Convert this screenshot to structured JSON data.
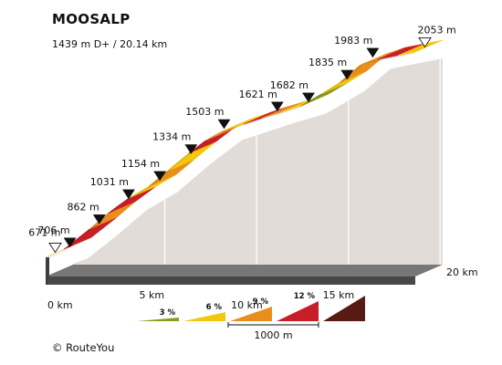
{
  "chart_data": {
    "type": "area",
    "title": "MOOSALP",
    "subtitle": "1439 m D+ / 20.14 km",
    "x_unit": "km",
    "x_ticks": [
      {
        "km": 0,
        "label": "0 km"
      },
      {
        "km": 5,
        "label": "5 km"
      },
      {
        "km": 10,
        "label": "10 km"
      },
      {
        "km": 15,
        "label": "15 km"
      },
      {
        "km": 20,
        "label": "20 km"
      }
    ],
    "total_km": 20.14,
    "xlim": [
      0,
      20.14
    ],
    "ylim": [
      671,
      2053
    ],
    "points": [
      {
        "km": 0,
        "elev": 671,
        "label": "671 m",
        "marker": "open"
      },
      {
        "km": 0.8,
        "elev": 706,
        "label": "706 m",
        "marker": "filled"
      },
      {
        "km": 2.4,
        "elev": 862,
        "label": "862 m",
        "marker": "filled"
      },
      {
        "km": 4.0,
        "elev": 1031,
        "label": "1031 m",
        "marker": "filled"
      },
      {
        "km": 5.7,
        "elev": 1154,
        "label": "1154 m",
        "marker": "filled"
      },
      {
        "km": 7.4,
        "elev": 1334,
        "label": "1334 m",
        "marker": "filled"
      },
      {
        "km": 9.2,
        "elev": 1503,
        "label": "1503 m",
        "marker": "filled"
      },
      {
        "km": 12.1,
        "elev": 1621,
        "label": "1621 m",
        "marker": "filled"
      },
      {
        "km": 13.8,
        "elev": 1682,
        "label": "1682 m",
        "marker": "filled"
      },
      {
        "km": 15.9,
        "elev": 1835,
        "label": "1835 m",
        "marker": "filled"
      },
      {
        "km": 17.3,
        "elev": 1983,
        "label": "1983 m",
        "marker": "filled"
      },
      {
        "km": 20.14,
        "elev": 2053,
        "label": "2053 m",
        "marker": "open"
      }
    ],
    "segments": [
      {
        "from": 0.0,
        "to": 1.0,
        "class": "6"
      },
      {
        "from": 1.0,
        "to": 2.4,
        "class": "12"
      },
      {
        "from": 2.4,
        "to": 3.4,
        "class": "9"
      },
      {
        "from": 3.4,
        "to": 4.5,
        "class": "12"
      },
      {
        "from": 4.5,
        "to": 5.6,
        "class": "6"
      },
      {
        "from": 5.6,
        "to": 6.6,
        "class": "9"
      },
      {
        "from": 6.6,
        "to": 7.8,
        "class": "6"
      },
      {
        "from": 7.8,
        "to": 8.7,
        "class": "12"
      },
      {
        "from": 8.7,
        "to": 9.7,
        "class": "9"
      },
      {
        "from": 9.7,
        "to": 10.8,
        "class": "6"
      },
      {
        "from": 10.8,
        "to": 11.8,
        "class": "12"
      },
      {
        "from": 11.8,
        "to": 12.8,
        "class": "9"
      },
      {
        "from": 12.8,
        "to": 13.9,
        "class": "6"
      },
      {
        "from": 13.9,
        "to": 15.0,
        "class": "3"
      },
      {
        "from": 15.0,
        "to": 16.0,
        "class": "6"
      },
      {
        "from": 16.0,
        "to": 17.1,
        "class": "9"
      },
      {
        "from": 17.1,
        "to": 18.1,
        "class": "9"
      },
      {
        "from": 18.1,
        "to": 19.2,
        "class": "12"
      },
      {
        "from": 19.2,
        "to": 20.14,
        "class": "6"
      }
    ],
    "legend": {
      "position": "bottom-center",
      "scale_label": "1000 m",
      "items": [
        {
          "class": "3",
          "label": "3 %",
          "color": "#8a9a1e"
        },
        {
          "class": "6",
          "label": "6 %",
          "color": "#f2c80f"
        },
        {
          "class": "9",
          "label": "9 %",
          "color": "#e98e1c"
        },
        {
          "class": "12",
          "label": "12 %",
          "color": "#c81e28"
        }
      ],
      "steep_color": "#5a1a14"
    },
    "colors": {
      "wall": "#e2dcd8",
      "base": "#474747",
      "3": "#8a9a1e",
      "6": "#f2c80f",
      "9": "#e98e1c",
      "12": "#c81e28"
    }
  },
  "credit": "© RouteYou"
}
